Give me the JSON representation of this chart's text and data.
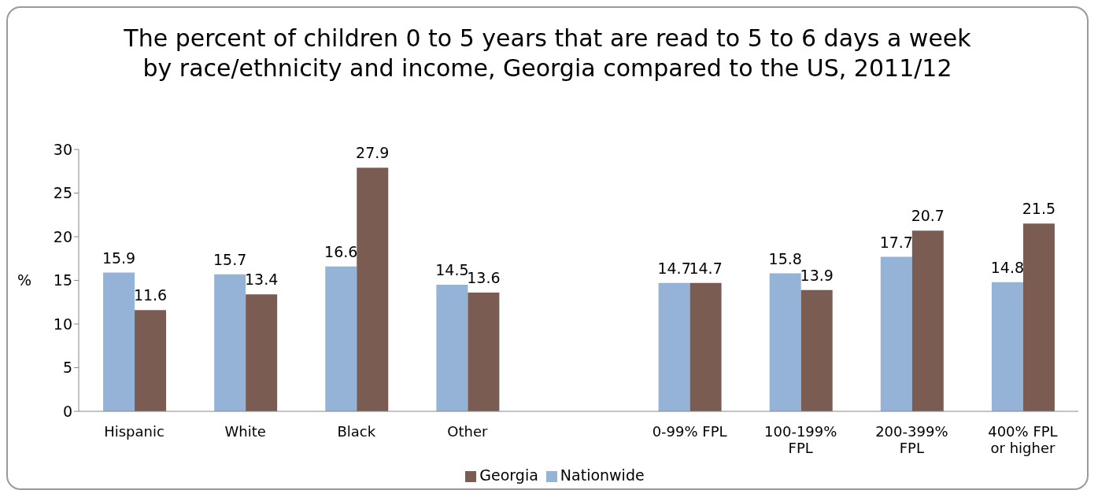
{
  "chart_data": {
    "type": "bar",
    "title": "The percent of children 0 to 5 years that are read to 5 to 6 days a week by race/ethnicity and income, Georgia compared to the US, 2011/12",
    "ylabel": "%",
    "categories": [
      "Hispanic",
      "White",
      "Black",
      "Other",
      null,
      "0-99% FPL",
      "100-199% FPL",
      "200-399% FPL",
      "400% FPL or higher"
    ],
    "series": [
      {
        "name": "Nationwide",
        "color": "#95b3d7",
        "values": [
          15.9,
          15.7,
          16.6,
          14.5,
          null,
          14.7,
          15.8,
          17.7,
          14.8
        ]
      },
      {
        "name": "Georgia",
        "color": "#7b5c52",
        "values": [
          11.6,
          13.4,
          27.9,
          13.6,
          null,
          14.7,
          13.9,
          20.7,
          21.5
        ]
      }
    ],
    "ylim": [
      0,
      30
    ],
    "yticks": [
      0,
      5,
      10,
      15,
      20,
      25,
      30
    ],
    "data_labels": true,
    "legend": "bottom",
    "grid": false
  }
}
